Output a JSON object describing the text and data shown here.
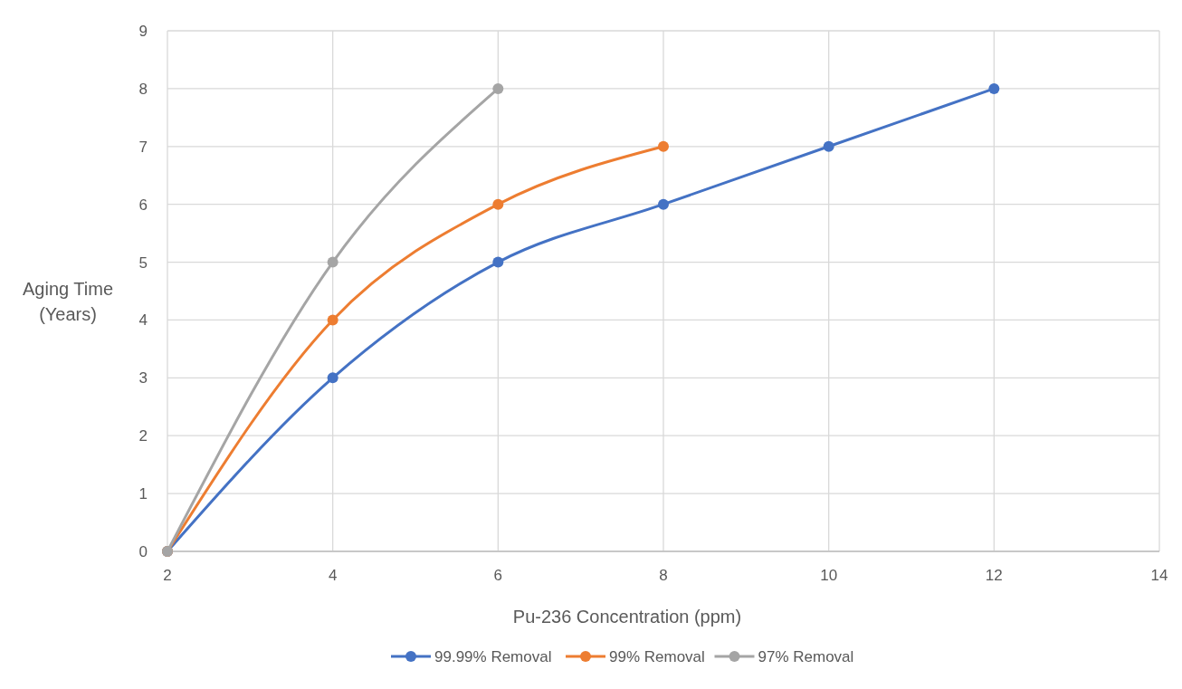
{
  "chart_data": {
    "type": "line",
    "xlabel": "Pu-236 Concentration (ppm)",
    "ylabel": "Aging Time (Years)",
    "xlim": [
      2,
      14
    ],
    "xticks": [
      2,
      4,
      6,
      8,
      10,
      12,
      14
    ],
    "ylim": [
      0,
      9
    ],
    "yticks": [
      0,
      1,
      2,
      3,
      4,
      5,
      6,
      7,
      8,
      9
    ],
    "grid": true,
    "legend": "bottom",
    "marker": "circle",
    "line_style": "solid",
    "series": [
      {
        "name": "99.99% Removal",
        "color": "#4472c4",
        "x": [
          2,
          4,
          6,
          8,
          10,
          12
        ],
        "values": [
          0,
          3,
          5,
          6,
          7,
          8
        ]
      },
      {
        "name": "99% Removal",
        "color": "#ed7d31",
        "x": [
          2,
          4,
          6,
          8
        ],
        "values": [
          0,
          4,
          6,
          7
        ]
      },
      {
        "name": "97% Removal",
        "color": "#a5a5a5",
        "x": [
          2,
          4,
          6
        ],
        "values": [
          0,
          5,
          8
        ]
      }
    ]
  }
}
